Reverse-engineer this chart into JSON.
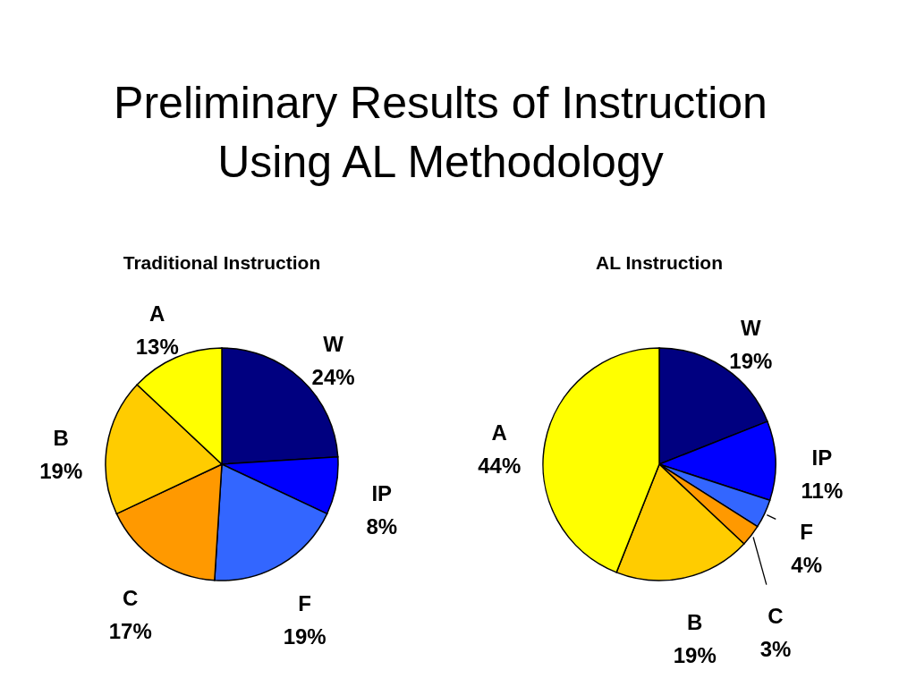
{
  "chart_data": [
    {
      "type": "pie",
      "title": "Preliminary Results of Instruction Using AL Methodology",
      "subtitle": "Traditional Instruction",
      "categories": [
        "W",
        "IP",
        "F",
        "C",
        "B",
        "A"
      ],
      "values": [
        24,
        8,
        19,
        17,
        19,
        13
      ],
      "colors": [
        "#000080",
        "#0000ff",
        "#3366ff",
        "#ff9900",
        "#ffcc00",
        "#ffff00"
      ],
      "value_labels": [
        "24%",
        "8%",
        "19%",
        "17%",
        "19%",
        "13%"
      ]
    },
    {
      "type": "pie",
      "title": "AL Instruction",
      "categories": [
        "W",
        "IP",
        "F",
        "C",
        "B",
        "A"
      ],
      "values": [
        19,
        11,
        4,
        3,
        19,
        44
      ],
      "colors": [
        "#000080",
        "#0000ff",
        "#3366ff",
        "#ff9900",
        "#ffcc00",
        "#ffff00"
      ],
      "value_labels": [
        "19%",
        "11%",
        "4%",
        "3%",
        "19%",
        "44%"
      ]
    }
  ]
}
